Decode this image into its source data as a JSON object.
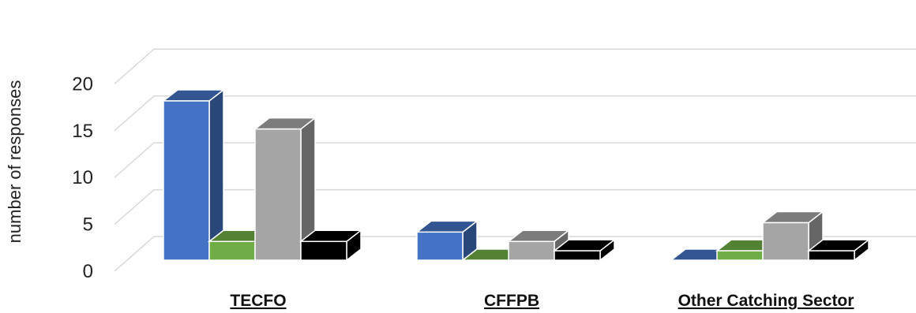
{
  "chart_data": {
    "type": "bar",
    "style": "3d-clustered-column",
    "title": "",
    "xlabel": "",
    "ylabel": "number of responses",
    "ylim": [
      0,
      20
    ],
    "yticks": [
      "0",
      "5",
      "10",
      "15",
      "20"
    ],
    "grid": true,
    "legend": "none",
    "categories": [
      "TECFO",
      "CFFPB",
      "Other Catching Sector"
    ],
    "series": [
      {
        "values": [
          17,
          3,
          0
        ],
        "color": "#4472c4"
      },
      {
        "values": [
          2,
          0,
          1
        ],
        "color": "#70ad47"
      },
      {
        "values": [
          14,
          2,
          4
        ],
        "color": "#a5a5a5"
      },
      {
        "values": [
          2,
          1,
          1
        ],
        "color": "#000000"
      }
    ]
  }
}
